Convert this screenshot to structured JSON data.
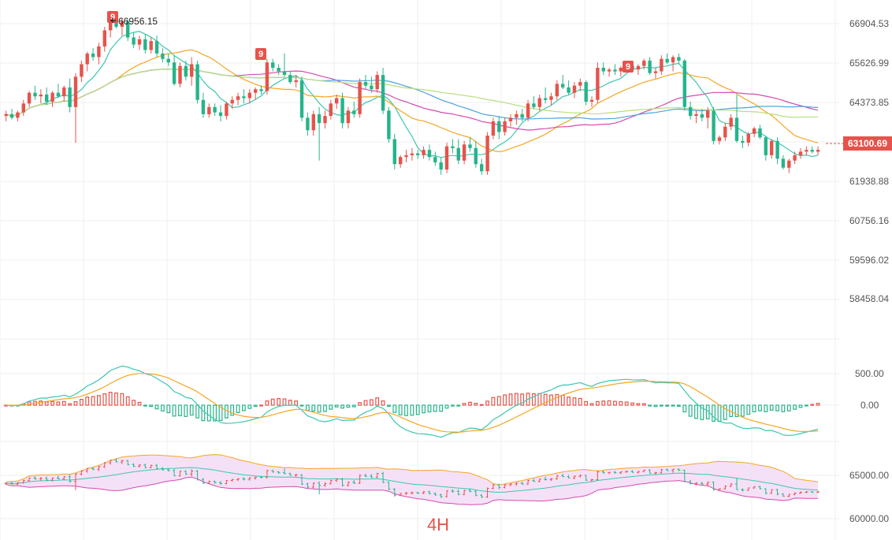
{
  "colors": {
    "up": "#e5534b",
    "down": "#26b48a",
    "ma_short": "#3cc7b0",
    "ma_mid": "#f5a623",
    "ma_long": "#d54bb0",
    "ma_longer": "#4aa3df",
    "ma_longest": "#b9de7d",
    "macd_dif": "#3cc7b0",
    "macd_dea": "#f5a623",
    "boll_upper": "#f5a623",
    "boll_mid": "#3cc7b0",
    "boll_lower": "#d54bb0",
    "boll_fill": "#f3d9f5",
    "grid": "#efefef",
    "price_tag_bg": "#e5534b"
  },
  "timeframe": "4H",
  "chart_data": [
    {
      "type": "candlestick",
      "panel": "main",
      "price_axis_ticks": [
        "66904.53",
        "65626.99",
        "64373.85",
        "61938.88",
        "60756.16",
        "59596.02",
        "58458.04"
      ],
      "ylim": [
        57800,
        67300
      ],
      "current_price": "63100.69",
      "high_annotation": "66956.15",
      "td_signals": [
        "9",
        "9",
        "9"
      ],
      "ohlc": [
        [
          64050,
          64200,
          63900,
          64100
        ],
        [
          64100,
          64250,
          63950,
          64000
        ],
        [
          64000,
          64200,
          63900,
          64150
        ],
        [
          64150,
          64500,
          64050,
          64400
        ],
        [
          64400,
          64750,
          64300,
          64700
        ],
        [
          64700,
          64900,
          64500,
          64600
        ],
        [
          64600,
          64800,
          64400,
          64650
        ],
        [
          64650,
          64850,
          64350,
          64450
        ],
        [
          64450,
          64750,
          64300,
          64700
        ],
        [
          64700,
          64950,
          64550,
          64600
        ],
        [
          64600,
          64900,
          64450,
          64850
        ],
        [
          64850,
          65100,
          64150,
          64300
        ],
        [
          64300,
          65250,
          63300,
          65150
        ],
        [
          65150,
          65600,
          65000,
          65500
        ],
        [
          65500,
          65850,
          65300,
          65800
        ],
        [
          65800,
          65950,
          65600,
          65700
        ],
        [
          65700,
          66100,
          65500,
          66000
        ],
        [
          66000,
          66550,
          65850,
          66450
        ],
        [
          66450,
          66800,
          66250,
          66750
        ],
        [
          66750,
          66956,
          66500,
          66550
        ],
        [
          66550,
          66800,
          66300,
          66700
        ],
        [
          66700,
          66750,
          66150,
          66250
        ],
        [
          66250,
          66400,
          65950,
          66050
        ],
        [
          66050,
          66300,
          65900,
          66200
        ],
        [
          66200,
          66350,
          65800,
          65900
        ],
        [
          65900,
          66250,
          65800,
          66150
        ],
        [
          66150,
          66300,
          65700,
          65800
        ],
        [
          65800,
          65950,
          65550,
          65650
        ],
        [
          65650,
          65800,
          65450,
          65550
        ],
        [
          65550,
          65750,
          64900,
          64950
        ],
        [
          64950,
          65550,
          64850,
          65450
        ],
        [
          65450,
          65600,
          65050,
          65150
        ],
        [
          65150,
          65700,
          64900,
          65500
        ],
        [
          65500,
          65600,
          64400,
          64500
        ],
        [
          64500,
          64700,
          64000,
          64100
        ],
        [
          64100,
          64400,
          64000,
          64300
        ],
        [
          64300,
          64400,
          64050,
          64150
        ],
        [
          64150,
          64350,
          63900,
          64050
        ],
        [
          64050,
          64450,
          63950,
          64400
        ],
        [
          64400,
          64600,
          64250,
          64500
        ],
        [
          64500,
          64700,
          64350,
          64600
        ],
        [
          64600,
          64800,
          64400,
          64550
        ],
        [
          64550,
          64800,
          64400,
          64700
        ],
        [
          64700,
          64850,
          64500,
          64800
        ],
        [
          64800,
          64900,
          64650,
          64750
        ],
        [
          64750,
          65650,
          64650,
          65550
        ],
        [
          65550,
          65650,
          65300,
          65400
        ],
        [
          65400,
          65500,
          65200,
          65300
        ],
        [
          65300,
          65800,
          65150,
          65200
        ],
        [
          65200,
          65300,
          64950,
          65000
        ],
        [
          65000,
          65200,
          64850,
          65050
        ],
        [
          65050,
          65150,
          63900,
          64000
        ],
        [
          64000,
          64150,
          63500,
          63650
        ],
        [
          63650,
          64200,
          63500,
          64100
        ],
        [
          64100,
          64300,
          62800,
          63850
        ],
        [
          63850,
          64200,
          63700,
          64050
        ],
        [
          64050,
          64500,
          63950,
          64400
        ],
        [
          64400,
          64650,
          64250,
          64550
        ],
        [
          64550,
          64700,
          63700,
          63850
        ],
        [
          63850,
          64300,
          63700,
          64200
        ],
        [
          64200,
          64450,
          64000,
          64100
        ],
        [
          64100,
          65100,
          64000,
          65000
        ],
        [
          65000,
          65200,
          64800,
          64900
        ],
        [
          64900,
          65150,
          64700,
          64800
        ],
        [
          64800,
          65300,
          64700,
          65200
        ],
        [
          65200,
          65400,
          64100,
          64200
        ],
        [
          64200,
          64300,
          63300,
          63400
        ],
        [
          63400,
          63550,
          62550,
          62700
        ],
        [
          62700,
          62950,
          62600,
          62900
        ],
        [
          62900,
          63100,
          62750,
          62950
        ],
        [
          62950,
          63150,
          62800,
          63000
        ],
        [
          63000,
          63100,
          62850,
          62950
        ],
        [
          62950,
          63200,
          62850,
          63100
        ],
        [
          63100,
          63250,
          62800,
          62900
        ],
        [
          62900,
          63050,
          62650,
          62750
        ],
        [
          62750,
          62900,
          62400,
          62550
        ],
        [
          62550,
          63300,
          62450,
          63200
        ],
        [
          63200,
          63400,
          63000,
          63150
        ],
        [
          63150,
          63400,
          62700,
          62800
        ],
        [
          62800,
          63350,
          62700,
          63250
        ],
        [
          63250,
          63450,
          63050,
          63150
        ],
        [
          63150,
          63350,
          62600,
          62700
        ],
        [
          62700,
          62850,
          62400,
          62500
        ],
        [
          62500,
          63600,
          62400,
          63500
        ],
        [
          63500,
          64000,
          63400,
          63900
        ],
        [
          63900,
          64050,
          63400,
          63600
        ],
        [
          63600,
          64000,
          63500,
          63900
        ],
        [
          63900,
          64100,
          63750,
          64000
        ],
        [
          64000,
          64200,
          63800,
          64100
        ],
        [
          64100,
          64250,
          63900,
          64000
        ],
        [
          64000,
          64500,
          63900,
          64400
        ],
        [
          64400,
          64600,
          64250,
          64300
        ],
        [
          64300,
          64650,
          64200,
          64550
        ],
        [
          64550,
          64850,
          64400,
          64500
        ],
        [
          64500,
          64700,
          64350,
          64600
        ],
        [
          64600,
          65050,
          64500,
          64950
        ],
        [
          64950,
          65200,
          64800,
          64850
        ],
        [
          64850,
          65050,
          64650,
          64700
        ],
        [
          64700,
          65000,
          64550,
          64900
        ],
        [
          64900,
          65100,
          64750,
          65000
        ],
        [
          65000,
          65050,
          64350,
          64450
        ],
        [
          64450,
          64600,
          64300,
          64500
        ],
        [
          64500,
          65550,
          64400,
          65400
        ],
        [
          65400,
          65550,
          65200,
          65300
        ],
        [
          65300,
          65400,
          65150,
          65350
        ],
        [
          65350,
          65500,
          65200,
          65300
        ],
        [
          65300,
          65450,
          65150,
          65400
        ],
        [
          65400,
          65550,
          65300,
          65450
        ],
        [
          65450,
          65600,
          65300,
          65350
        ],
        [
          65350,
          65500,
          65200,
          65450
        ],
        [
          65450,
          65650,
          65350,
          65600
        ],
        [
          65600,
          65700,
          65200,
          65250
        ],
        [
          65250,
          65400,
          65100,
          65300
        ],
        [
          65300,
          65750,
          65200,
          65650
        ],
        [
          65650,
          65800,
          65500,
          65550
        ],
        [
          65550,
          65750,
          65300,
          65700
        ],
        [
          65700,
          65800,
          65500,
          65600
        ],
        [
          65600,
          65650,
          64200,
          64300
        ],
        [
          64300,
          64450,
          63950,
          64050
        ],
        [
          64050,
          64200,
          63850,
          64100
        ],
        [
          64100,
          64250,
          63900,
          64000
        ],
        [
          64000,
          64300,
          63700,
          64200
        ],
        [
          64200,
          64300,
          63250,
          63350
        ],
        [
          63350,
          63500,
          63250,
          63450
        ],
        [
          63450,
          63850,
          63350,
          63750
        ],
        [
          63750,
          64100,
          63650,
          64000
        ],
        [
          64000,
          64650,
          63300,
          63350
        ],
        [
          63350,
          63500,
          63150,
          63300
        ],
        [
          63300,
          63600,
          63200,
          63550
        ],
        [
          63550,
          63750,
          63450,
          63700
        ],
        [
          63700,
          63800,
          63400,
          63450
        ],
        [
          63450,
          63500,
          62800,
          62950
        ],
        [
          62950,
          63400,
          62850,
          63350
        ],
        [
          63350,
          63450,
          62700,
          62850
        ],
        [
          62850,
          62950,
          62550,
          62600
        ],
        [
          62600,
          62850,
          62450,
          62800
        ],
        [
          62800,
          63050,
          62700,
          62950
        ],
        [
          62950,
          63150,
          62850,
          63050
        ],
        [
          63050,
          63200,
          62950,
          63100
        ],
        [
          63100,
          63200,
          63000,
          63050
        ],
        [
          63050,
          63200,
          62950,
          63100
        ]
      ]
    },
    {
      "type": "macd",
      "panel": "macd",
      "axis_ticks": [
        "500.00",
        "0.00"
      ]
    },
    {
      "type": "bollinger",
      "panel": "boll",
      "axis_ticks": [
        "65000.00",
        "60000.00"
      ]
    }
  ]
}
